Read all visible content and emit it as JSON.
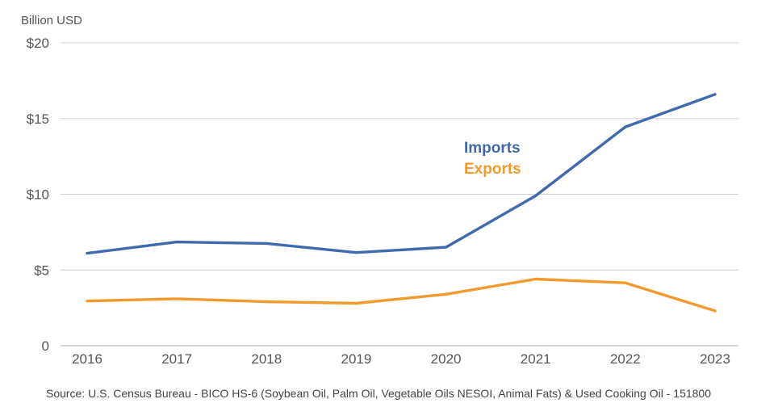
{
  "chart_data": {
    "type": "line",
    "title": "",
    "ylabel": "Billion USD",
    "xlabel": "",
    "x": [
      "2016",
      "2017",
      "2018",
      "2019",
      "2020",
      "2021",
      "2022",
      "2023"
    ],
    "ylim": [
      0,
      20
    ],
    "yticks": [
      0,
      5,
      10,
      15,
      20
    ],
    "ytick_labels": [
      "0",
      "$5",
      "$10",
      "$15",
      "$20"
    ],
    "grid": true,
    "series": [
      {
        "name": "Imports",
        "color": "#4169ad",
        "values": [
          6.1,
          6.85,
          6.75,
          6.15,
          6.5,
          9.9,
          14.45,
          16.6
        ]
      },
      {
        "name": "Exports",
        "color": "#f29a2e",
        "values": [
          2.95,
          3.1,
          2.9,
          2.8,
          3.4,
          4.4,
          4.15,
          2.3
        ]
      }
    ],
    "legend": {
      "placement": "center-right",
      "entries": [
        "Imports",
        "Exports"
      ]
    },
    "source": "Source: U.S. Census Bureau - BICO HS-6 (Soybean Oil, Palm Oil, Vegetable Oils NESOI, Animal Fats) & Used Cooking Oil - 151800"
  }
}
